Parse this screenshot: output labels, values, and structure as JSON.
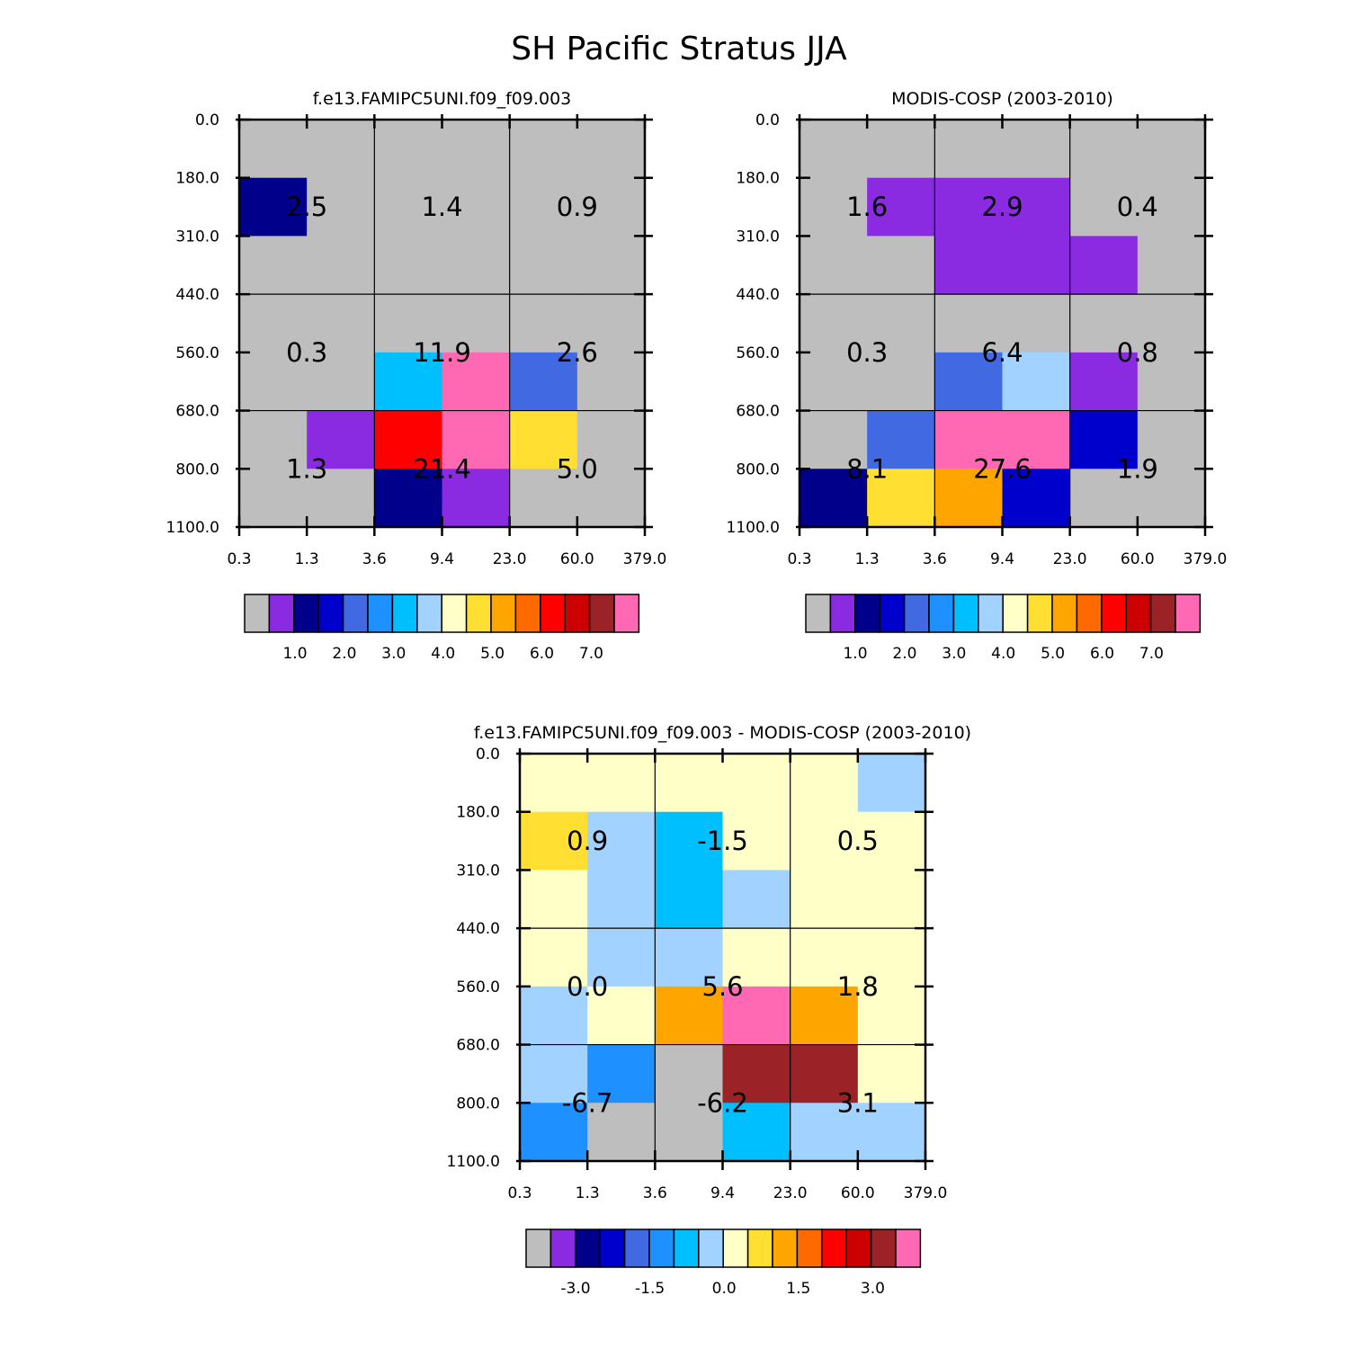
{
  "chart_data": {
    "type": "heatmap",
    "title": "SH Pacific Stratus JJA",
    "x_tick_labels": [
      "0.3",
      "1.3",
      "3.6",
      "9.4",
      "23.0",
      "60.0",
      "379.0"
    ],
    "y_tick_labels": [
      "0.0",
      "180.0",
      "310.0",
      "440.0",
      "560.0",
      "680.0",
      "800.0",
      "1100.0"
    ],
    "y_ticks_right": true,
    "note": "each panel grid: 7 rows (pressure bins, top=0.0) x 6 columns (optical-depth bins); color index 0 = gray, 1..15 = colorbar boxes; values = 3x3 block label sums",
    "panels": [
      {
        "title": "f.e13.FAMIPC5UNI.f09_f09.003",
        "grid": [
          [
            0,
            0,
            0,
            0,
            0,
            0
          ],
          [
            2,
            0,
            0,
            0,
            0,
            0
          ],
          [
            0,
            0,
            0,
            0,
            0,
            0
          ],
          [
            0,
            0,
            0,
            0,
            0,
            0
          ],
          [
            0,
            0,
            6,
            15,
            4,
            0
          ],
          [
            0,
            1,
            12,
            15,
            9,
            0
          ],
          [
            0,
            0,
            2,
            1,
            0,
            0
          ]
        ],
        "values": [
          {
            "row": 0,
            "col": 0,
            "label": "2.5"
          },
          {
            "row": 0,
            "col": 1,
            "label": "1.4"
          },
          {
            "row": 0,
            "col": 2,
            "label": "0.9"
          },
          {
            "row": 1,
            "col": 0,
            "label": "0.3"
          },
          {
            "row": 1,
            "col": 1,
            "label": "11.9"
          },
          {
            "row": 1,
            "col": 2,
            "label": "2.6"
          },
          {
            "row": 2,
            "col": 0,
            "label": "1.3"
          },
          {
            "row": 2,
            "col": 1,
            "label": "21.4"
          },
          {
            "row": 2,
            "col": 2,
            "label": "5.0"
          }
        ],
        "colorbar_labels": [
          "1.0",
          "2.0",
          "3.0",
          "4.0",
          "5.0",
          "6.0",
          "7.0"
        ]
      },
      {
        "title": "MODIS-COSP (2003-2010)",
        "grid": [
          [
            0,
            0,
            0,
            0,
            0,
            0
          ],
          [
            0,
            1,
            1,
            1,
            0,
            0
          ],
          [
            0,
            0,
            1,
            1,
            1,
            0
          ],
          [
            0,
            0,
            0,
            0,
            0,
            0
          ],
          [
            0,
            0,
            4,
            7,
            1,
            0
          ],
          [
            0,
            4,
            15,
            15,
            3,
            0
          ],
          [
            2,
            9,
            10,
            3,
            0,
            0
          ]
        ],
        "values": [
          {
            "row": 0,
            "col": 0,
            "label": "1.6"
          },
          {
            "row": 0,
            "col": 1,
            "label": "2.9"
          },
          {
            "row": 0,
            "col": 2,
            "label": "0.4"
          },
          {
            "row": 1,
            "col": 0,
            "label": "0.3"
          },
          {
            "row": 1,
            "col": 1,
            "label": "6.4"
          },
          {
            "row": 1,
            "col": 2,
            "label": "0.8"
          },
          {
            "row": 2,
            "col": 0,
            "label": "8.1"
          },
          {
            "row": 2,
            "col": 1,
            "label": "27.6"
          },
          {
            "row": 2,
            "col": 2,
            "label": "1.9"
          }
        ],
        "colorbar_labels": [
          "1.0",
          "2.0",
          "3.0",
          "4.0",
          "5.0",
          "6.0",
          "7.0"
        ]
      },
      {
        "title": "f.e13.FAMIPC5UNI.f09_f09.003 - MODIS-COSP (2003-2010)",
        "grid": [
          [
            8,
            8,
            8,
            8,
            8,
            7
          ],
          [
            9,
            7,
            6,
            8,
            8,
            8
          ],
          [
            8,
            7,
            6,
            7,
            8,
            8
          ],
          [
            8,
            7,
            7,
            8,
            8,
            8
          ],
          [
            7,
            8,
            10,
            15,
            10,
            8
          ],
          [
            7,
            5,
            0,
            14,
            14,
            8
          ],
          [
            5,
            0,
            0,
            6,
            7,
            7
          ]
        ],
        "values": [
          {
            "row": 0,
            "col": 0,
            "label": "0.9"
          },
          {
            "row": 0,
            "col": 1,
            "label": "-1.5"
          },
          {
            "row": 0,
            "col": 2,
            "label": "0.5"
          },
          {
            "row": 1,
            "col": 0,
            "label": "0.0"
          },
          {
            "row": 1,
            "col": 1,
            "label": "5.6"
          },
          {
            "row": 1,
            "col": 2,
            "label": "1.8"
          },
          {
            "row": 2,
            "col": 0,
            "label": "-6.7"
          },
          {
            "row": 2,
            "col": 1,
            "label": "-6.2"
          },
          {
            "row": 2,
            "col": 2,
            "label": "3.1"
          }
        ],
        "colorbar_labels": [
          "-3.0",
          "-1.5",
          "0.0",
          "1.5",
          "3.0"
        ]
      }
    ]
  },
  "colors": {
    "missing": "#bebebe",
    "palette": [
      "#bebebe",
      "#8a2be2",
      "#00008b",
      "#0000cd",
      "#4169e1",
      "#1e90ff",
      "#00bfff",
      "#a2d2ff",
      "#ffffc8",
      "#ffe032",
      "#ffa500",
      "#ff6a00",
      "#ff0000",
      "#cd0000",
      "#9b2226",
      "#ff69b4"
    ]
  }
}
